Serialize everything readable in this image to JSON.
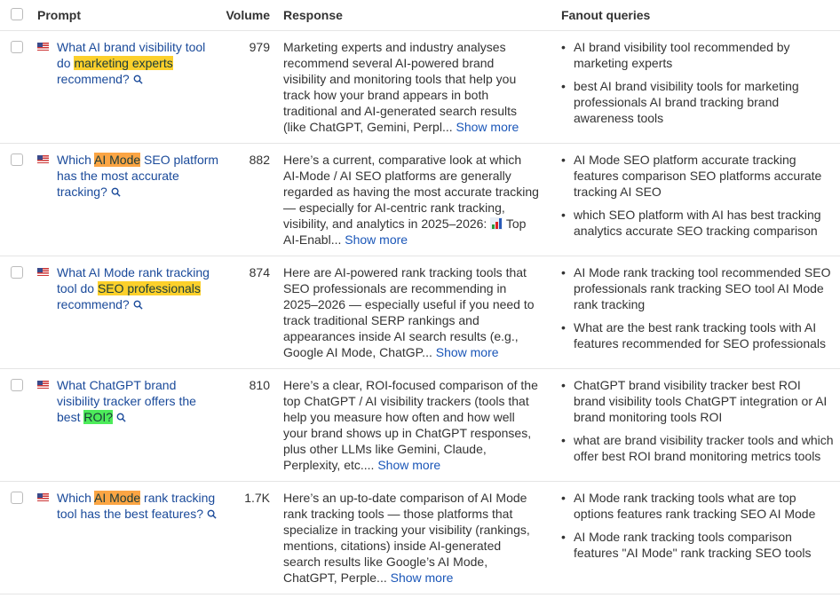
{
  "header": {
    "prompt": "Prompt",
    "volume": "Volume",
    "response": "Response",
    "fanout": "Fanout queries"
  },
  "highlight_colors": {
    "yellow": "#fcd02b",
    "orange": "#fba544",
    "green": "#4deb5a"
  },
  "show_more_label": "Show more",
  "rows": [
    {
      "prompt": [
        {
          "t": "What AI brand visibility tool do "
        },
        {
          "t": "marketing experts",
          "hl": "yellow"
        },
        {
          "t": " recommend?"
        }
      ],
      "volume": "979",
      "response": "Marketing experts and industry analyses recommend several AI-powered brand visibility and monitoring tools that help you track how your brand appears in both traditional and AI-generated search results (like ChatGPT, Gemini, Perpl...",
      "fanout": [
        "AI brand visibility tool recommended by marketing experts",
        "best AI brand visibility tools for marketing professionals AI brand tracking brand awareness tools"
      ]
    },
    {
      "prompt": [
        {
          "t": "Which "
        },
        {
          "t": "AI Mode",
          "hl": "orange"
        },
        {
          "t": " SEO platform has the most accurate tracking?"
        }
      ],
      "volume": "882",
      "response_pre": "Here’s a current, comparative look at which AI-Mode / AI SEO platforms are generally regarded as having the most accurate tracking — especially for AI-centric rank tracking, visibility, and analytics in 2025–2026: ",
      "response_emoji": "bar-chart-emoji",
      "response": " Top AI-Enabl...",
      "fanout": [
        "AI Mode SEO platform accurate tracking features comparison SEO platforms accurate tracking AI SEO",
        "which SEO platform with AI has best tracking analytics accurate SEO tracking comparison"
      ]
    },
    {
      "prompt": [
        {
          "t": "What AI Mode rank tracking tool do "
        },
        {
          "t": "SEO professionals",
          "hl": "yellow"
        },
        {
          "t": " recommend?"
        }
      ],
      "volume": "874",
      "response": "Here are AI-powered rank tracking tools that SEO professionals are recommending in 2025–2026 — especially useful if you need to track traditional SERP rankings and appearances inside AI search results (e.g., Google AI Mode, ChatGP...",
      "fanout": [
        "AI Mode rank tracking tool recommended SEO professionals rank tracking SEO tool AI Mode rank tracking",
        "What are the best rank tracking tools with AI features recommended for SEO professionals"
      ]
    },
    {
      "prompt": [
        {
          "t": "What ChatGPT brand visibility tracker offers the best "
        },
        {
          "t": "ROI?",
          "hl": "green"
        }
      ],
      "volume": "810",
      "response": "Here’s a clear, ROI-focused comparison of the top ChatGPT / AI visibility trackers (tools that help you measure how often and how well your brand shows up in ChatGPT responses, plus other LLMs like Gemini, Claude, Perplexity, etc....",
      "fanout": [
        "ChatGPT brand visibility tracker best ROI brand visibility tools ChatGPT integration or AI brand monitoring tools ROI",
        "what are brand visibility tracker tools and which offer best ROI brand monitoring metrics tools"
      ]
    },
    {
      "prompt": [
        {
          "t": "Which "
        },
        {
          "t": "AI Mode",
          "hl": "orange"
        },
        {
          "t": " rank tracking tool has the best features?"
        }
      ],
      "volume": "1.7K",
      "response": "Here’s an up-to-date comparison of AI Mode rank tracking tools — those platforms that specialize in tracking your visibility (rankings, mentions, citations) inside AI-generated search results like Google’s AI Mode, ChatGPT, Perple...",
      "fanout": [
        "AI Mode rank tracking tools what are top options features rank tracking SEO AI Mode",
        "AI Mode rank tracking tools comparison features \"AI Mode\" rank tracking SEO tools"
      ]
    }
  ]
}
